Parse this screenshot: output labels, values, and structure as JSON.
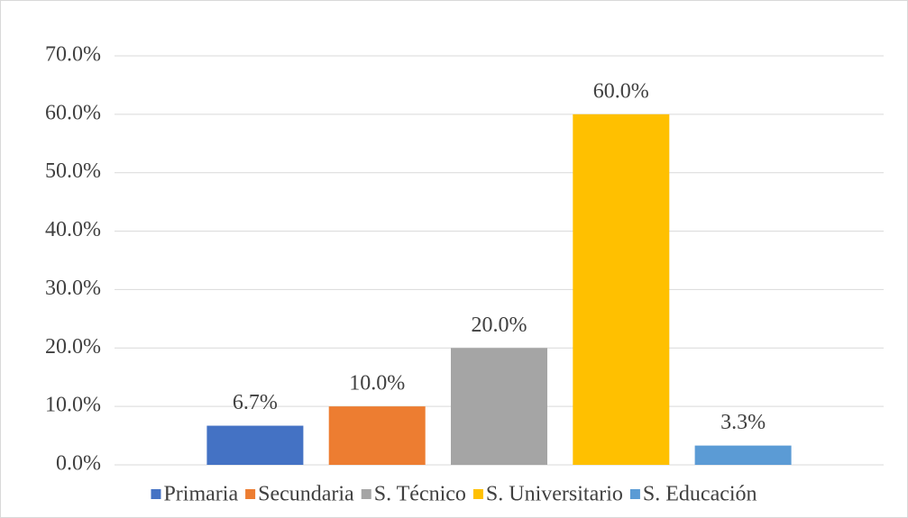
{
  "chart_data": {
    "type": "bar",
    "categories": [
      null
    ],
    "series": [
      {
        "name": "Primaria",
        "color": "#4472c4",
        "values": [
          6.7
        ],
        "value_labels": [
          "6.7%"
        ]
      },
      {
        "name": "Secundaria",
        "color": "#ed7d31",
        "values": [
          10.0
        ],
        "value_labels": [
          "10.0%"
        ]
      },
      {
        "name": "S. Técnico",
        "color": "#a5a5a5",
        "values": [
          20.0
        ],
        "value_labels": [
          "20.0%"
        ]
      },
      {
        "name": "S. Universitario",
        "color": "#ffc000",
        "values": [
          60.0
        ],
        "value_labels": [
          "60.0%"
        ]
      },
      {
        "name": "S. Educación",
        "color": "#5b9bd5",
        "values": [
          3.3
        ],
        "value_labels": [
          "3.3%"
        ]
      }
    ],
    "ylim": [
      0,
      70
    ],
    "yticks": [
      {
        "value": 0,
        "label": "0.0%"
      },
      {
        "value": 10,
        "label": "10.0%"
      },
      {
        "value": 20,
        "label": "20.0%"
      },
      {
        "value": 30,
        "label": "30.0%"
      },
      {
        "value": 40,
        "label": "40.0%"
      },
      {
        "value": 50,
        "label": "50.0%"
      },
      {
        "value": 60,
        "label": "60.0%"
      },
      {
        "value": 70,
        "label": "70.0%"
      }
    ],
    "grid": true,
    "legend": "bottom"
  }
}
